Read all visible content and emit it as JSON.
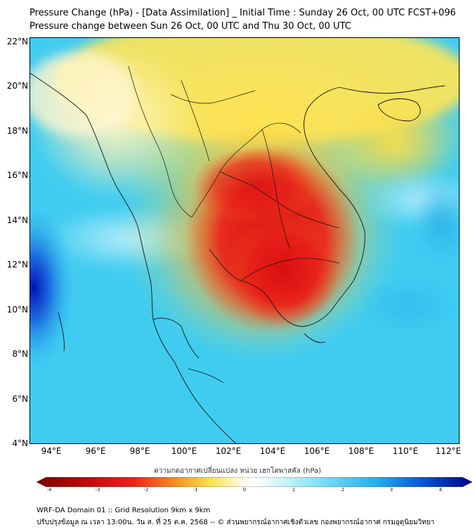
{
  "header": {
    "title_line1": "Pressure Change (hPa) - [Data Assimilation] _ Initial Time : Sunday 26 Oct, 00 UTC FCST+096",
    "title_line2": "Pressure change between Sun 26 Oct, 00 UTC and Thu 30 Oct, 00 UTC"
  },
  "axes": {
    "lat_labels": [
      "22°N",
      "20°N",
      "18°N",
      "16°N",
      "14°N",
      "12°N",
      "10°N",
      "8°N",
      "6°N",
      "4°N"
    ],
    "lon_labels": [
      "94°E",
      "96°E",
      "98°E",
      "100°E",
      "102°E",
      "104°E",
      "106°E",
      "108°E",
      "110°E",
      "112°E"
    ]
  },
  "colorbar": {
    "title": "ความกดอากาศเปลี่ยนแปลง หน่วย เฮกโตพาสคัล (hPa)",
    "ticks": [
      "-4",
      "-3",
      "-2",
      "-1",
      "0",
      "1",
      "2",
      "3",
      "4"
    ],
    "range": [
      -4,
      4
    ],
    "colors": {
      "strong_negative": "#7a0000",
      "negative": "#e8141a",
      "mid_negative": "#f58a1f",
      "weak_negative": "#fde24a",
      "neutral": "#ffffff",
      "weak_positive": "#8ee8f5",
      "positive": "#29b8ef",
      "strong_positive": "#00008b"
    }
  },
  "footer": {
    "line1": "WRF-DA Domain 01 :: Grid Resolution 9km x 9km",
    "line2": "ปรับปรุงข้อมูล ณ เวลา 13:00น. วัน ส. ที่ 25 ต.ค. 2568 -- © ส่วนพยากรณ์อากาศเชิงตัวเลข กองพยากรณ์อากาศ กรมอุตุนิยมวิทยา"
  }
}
